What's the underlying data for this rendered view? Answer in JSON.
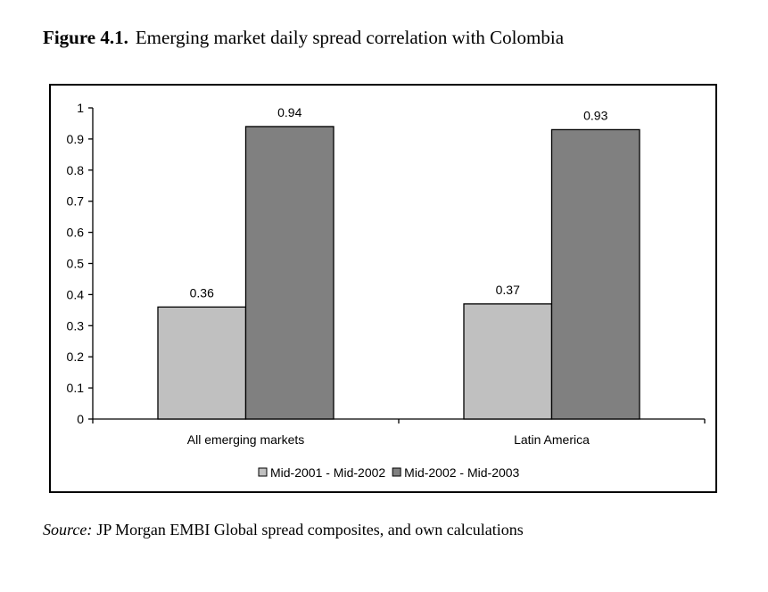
{
  "figure": {
    "number": "Figure 4.1.",
    "title": "Emerging market daily spread correlation with Colombia"
  },
  "source": {
    "label": "Source:",
    "text": "JP Morgan EMBI Global spread composites, and own calculations"
  },
  "chart_data": {
    "type": "bar",
    "title": "Emerging market daily spread correlation with Colombia",
    "xlabel": "",
    "ylabel": "",
    "categories": [
      "All emerging markets",
      "Latin America"
    ],
    "series": [
      {
        "name": "Mid-2001 - Mid-2002",
        "color": "#c0c0c0",
        "values": [
          0.36,
          0.37
        ],
        "labels": [
          "0.36",
          "0.37"
        ]
      },
      {
        "name": "Mid-2002 - Mid-2003",
        "color": "#808080",
        "values": [
          0.94,
          0.93
        ],
        "labels": [
          "0.94",
          "0.93"
        ]
      }
    ],
    "ylim": [
      0,
      1
    ],
    "yticks": [
      0,
      0.1,
      0.2,
      0.3,
      0.4,
      0.5,
      0.6,
      0.7,
      0.8,
      0.9,
      1
    ],
    "ytick_labels": [
      "0",
      "0.1",
      "0.2",
      "0.3",
      "0.4",
      "0.5",
      "0.6",
      "0.7",
      "0.8",
      "0.9",
      "1"
    ],
    "grid": false,
    "legend": "bottom"
  }
}
